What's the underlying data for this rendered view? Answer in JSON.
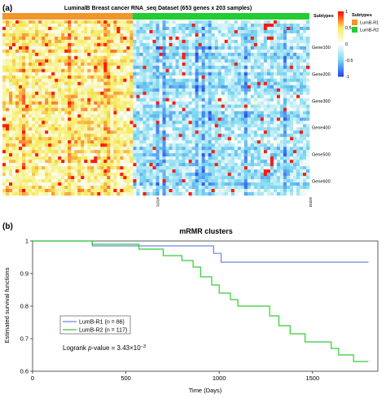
{
  "colors": {
    "group1": "#f0962a",
    "group2": "#22cc33",
    "curve1": "#6f86d9",
    "curve2": "#33cc33",
    "heat_high": "#ff0000",
    "heat_mid": "#ffffff",
    "heat_low": "#2244ee"
  },
  "panel_a": {
    "panel_label": "(a)",
    "title": "LuminalB Breast cancer RNA_seq Dataset (653 genes x 203 samples)",
    "annotation_label": "Subtypes",
    "gene_labels": [
      "Gene100",
      "Gene200",
      "Gene300",
      "Gene400",
      "Gene500",
      "Gene600"
    ],
    "sample_labels": [
      "s0101",
      "s0203"
    ],
    "colorbar_ticks": [
      "1",
      "0.5",
      "0",
      "-0.5",
      "-1"
    ],
    "legend_title": "Subtypes",
    "legend_items": [
      "LumB-R1",
      "LumB-R2"
    ]
  },
  "panel_b": {
    "panel_label": "(b)",
    "title": "mRMR clusters",
    "xlabel": "Time (Days)",
    "ylabel": "Estimated survival functions",
    "legend": [
      "LumB-R1 (n = 86)",
      "LumB-R2 (n = 117)"
    ],
    "logrank_label": "Logrank",
    "logrank_p": "p",
    "logrank_rest": "-value = 3.43×10",
    "logrank_exp": "−3"
  },
  "chart_data": [
    {
      "type": "heatmap",
      "title": "LuminalB Breast cancer RNA_seq Dataset (653 genes x 203 samples)",
      "rows": 653,
      "columns": 203,
      "row_tick_labels": [
        "Gene100",
        "Gene200",
        "Gene300",
        "Gene400",
        "Gene500",
        "Gene600"
      ],
      "column_tick_labels": [
        "s0101",
        "s0203"
      ],
      "column_groups": [
        {
          "name": "LumB-R1",
          "count": 86
        },
        {
          "name": "LumB-R2",
          "count": 117
        }
      ],
      "color_scale": {
        "min": -1,
        "max": 1,
        "ticks": [
          1,
          0.5,
          0,
          -0.5,
          -1
        ]
      },
      "legend_placement": "right"
    },
    {
      "type": "line",
      "title": "mRMR clusters",
      "xlabel": "Time (Days)",
      "ylabel": "Estimated survival functions",
      "xlim": [
        0,
        1850
      ],
      "ylim": [
        0.6,
        1.0
      ],
      "xticks": [
        0,
        500,
        1000,
        1500
      ],
      "yticks": [
        0.6,
        0.7,
        0.8,
        0.9,
        1.0
      ],
      "step": true,
      "series": [
        {
          "name": "LumB-R1 (n = 86)",
          "x": [
            0,
            320,
            970,
            1010,
            1800
          ],
          "y": [
            1.0,
            0.985,
            0.962,
            0.935,
            0.935
          ]
        },
        {
          "name": "LumB-R2 (n = 117)",
          "x": [
            0,
            320,
            570,
            700,
            800,
            860,
            900,
            960,
            1000,
            1060,
            1100,
            1180,
            1270,
            1320,
            1380,
            1460,
            1540,
            1600,
            1640,
            1720,
            1800
          ],
          "y": [
            1.0,
            0.99,
            0.975,
            0.955,
            0.94,
            0.92,
            0.89,
            0.865,
            0.84,
            0.82,
            0.8,
            0.8,
            0.77,
            0.74,
            0.715,
            0.69,
            0.69,
            0.67,
            0.65,
            0.63,
            0.63
          ]
        }
      ],
      "annotation": "Logrank p-value = 3.43×10−3",
      "legend_placement": "bottom-left"
    }
  ]
}
